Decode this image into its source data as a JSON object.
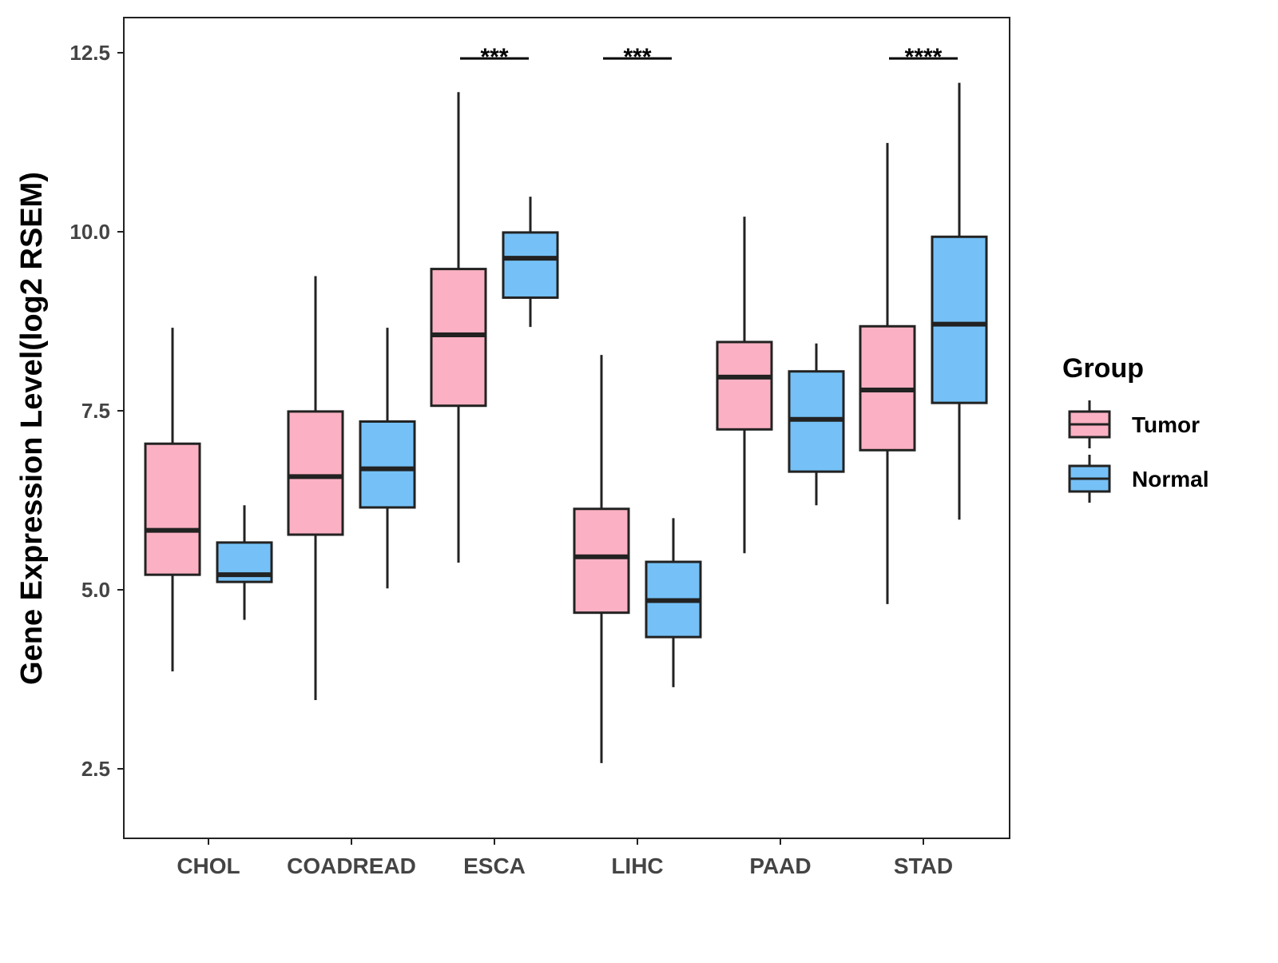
{
  "chart_data": {
    "type": "boxplot",
    "title": "",
    "xlabel": "",
    "ylabel": "Gene Expression Level(log2 RSEM)",
    "ylim": [
      1.53,
      12.99
    ],
    "yticks": [
      "2.5",
      "5.0",
      "7.5",
      "10.0",
      "12.5"
    ],
    "ytick_values": [
      2.5,
      5.0,
      7.5,
      10.0,
      12.5
    ],
    "grid": false,
    "categories": [
      "CHOL",
      "COADREAD",
      "ESCA",
      "LIHC",
      "PAAD",
      "STAD"
    ],
    "legend": {
      "title": "Group",
      "placement": "right",
      "entries": [
        "Tumor",
        "Normal"
      ]
    },
    "colors": {
      "Tumor": "#FBB1C3",
      "Normal": "#75C1F7"
    },
    "series": [
      {
        "name": "Tumor",
        "boxes": [
          {
            "min": 3.86,
            "q1": 5.21,
            "median": 5.83,
            "q3": 7.04,
            "max": 8.66
          },
          {
            "min": 3.46,
            "q1": 5.77,
            "median": 6.58,
            "q3": 7.49,
            "max": 9.38
          },
          {
            "min": 5.38,
            "q1": 7.57,
            "median": 8.56,
            "q3": 9.48,
            "max": 11.95
          },
          {
            "min": 2.58,
            "q1": 4.68,
            "median": 5.46,
            "q3": 6.13,
            "max": 8.28
          },
          {
            "min": 5.51,
            "q1": 7.24,
            "median": 7.97,
            "q3": 8.46,
            "max": 10.21
          },
          {
            "min": 4.8,
            "q1": 6.95,
            "median": 7.79,
            "q3": 8.68,
            "max": 11.24
          }
        ]
      },
      {
        "name": "Normal",
        "boxes": [
          {
            "min": 4.58,
            "q1": 5.11,
            "median": 5.21,
            "q3": 5.66,
            "max": 6.18
          },
          {
            "min": 5.02,
            "q1": 6.15,
            "median": 6.69,
            "q3": 7.35,
            "max": 8.66
          },
          {
            "min": 8.67,
            "q1": 9.08,
            "median": 9.63,
            "q3": 9.99,
            "max": 10.49
          },
          {
            "min": 3.64,
            "q1": 4.34,
            "median": 4.85,
            "q3": 5.39,
            "max": 6.0
          },
          {
            "min": 6.18,
            "q1": 6.65,
            "median": 7.38,
            "q3": 8.05,
            "max": 8.44
          },
          {
            "min": 5.98,
            "q1": 7.61,
            "median": 8.71,
            "q3": 9.93,
            "max": 12.08
          }
        ]
      }
    ],
    "annotations": [
      {
        "category": "ESCA",
        "label": "***",
        "y": 12.42
      },
      {
        "category": "LIHC",
        "label": "***",
        "y": 12.42
      },
      {
        "category": "STAD",
        "label": "****",
        "y": 12.42
      }
    ]
  }
}
